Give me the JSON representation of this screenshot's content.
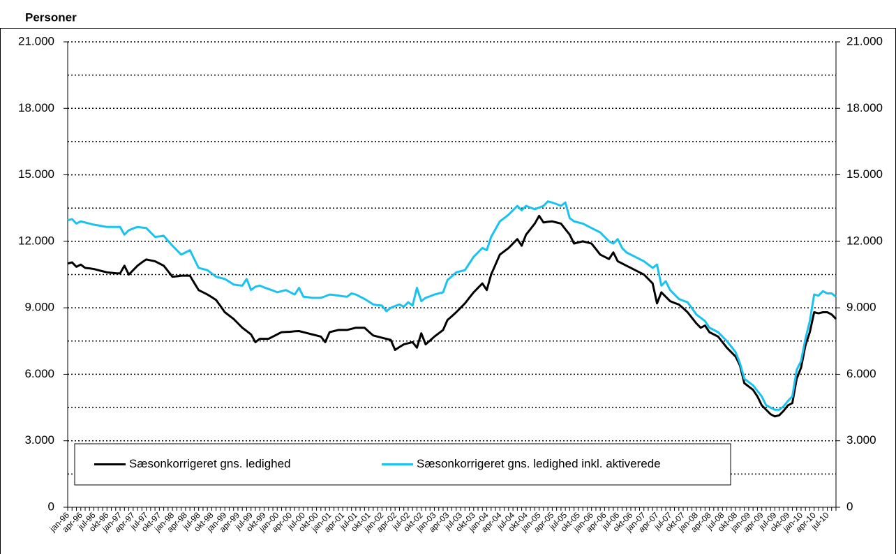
{
  "chart_data": {
    "type": "line",
    "y_axis_label": "Personer",
    "categories": [
      "jan-96",
      null,
      null,
      "apr-96",
      null,
      null,
      "jul-96",
      null,
      null,
      "okt-96",
      null,
      null,
      "jan-97",
      null,
      null,
      "apr-97",
      null,
      null,
      "jul-97",
      null,
      null,
      "okt-97",
      null,
      null,
      "jan-98",
      null,
      null,
      "apr-98",
      null,
      null,
      "jul-98",
      null,
      null,
      "okt-98",
      null,
      null,
      "jan-99",
      null,
      null,
      "apr-99",
      null,
      null,
      "jul-99",
      null,
      null,
      "okt-99",
      null,
      null,
      "jan-00",
      null,
      null,
      "apr-00",
      null,
      null,
      "jul-00",
      null,
      null,
      "okt-00",
      null,
      null,
      "jan-01",
      null,
      null,
      "apr-01",
      null,
      null,
      "jul-01",
      null,
      null,
      "okt-01",
      null,
      null,
      "jan-02",
      null,
      null,
      "apr-02",
      null,
      null,
      "jul-02",
      null,
      null,
      "okt-02",
      null,
      null,
      "jan-03",
      null,
      null,
      "apr-03",
      null,
      null,
      "jul-03",
      null,
      null,
      "okt-03",
      null,
      null,
      "jan-04",
      null,
      null,
      "apr-04",
      null,
      null,
      "jul-04",
      null,
      null,
      "okt-04",
      null,
      null,
      "jan-05",
      null,
      null,
      "apr-05",
      null,
      null,
      "jul-05",
      null,
      null,
      "okt-05",
      null,
      null,
      "jan-06",
      null,
      null,
      "apr-06",
      null,
      null,
      "jul-06",
      null,
      null,
      "okt-06",
      null,
      null,
      "jan-07",
      null,
      null,
      "apr-07",
      null,
      null,
      "jul-07",
      null,
      null,
      "okt-07",
      null,
      null,
      "jan-08",
      null,
      null,
      "apr-08",
      null,
      null,
      "jul-08",
      null,
      null,
      "okt-08",
      null,
      null,
      "jan-09",
      null,
      null,
      "apr-09",
      null,
      null,
      "jul-09",
      null,
      null,
      "okt-09",
      null,
      null,
      "jan-10",
      null,
      null,
      "apr-10",
      null,
      null,
      "jul-10",
      null,
      null
    ],
    "series": [
      {
        "name": "Sæsonkorrigeret gns. ledighed",
        "color": "#000000",
        "values": [
          11000,
          11050,
          10850,
          10950,
          10800,
          10780,
          10750,
          10700,
          10650,
          10600,
          10580,
          10560,
          10550,
          10900,
          10500,
          10700,
          10900,
          11050,
          11180,
          11140,
          11100,
          11000,
          10900,
          10650,
          10400,
          10420,
          10450,
          10450,
          10450,
          10120,
          9800,
          9700,
          9600,
          9480,
          9350,
          9080,
          8800,
          8650,
          8500,
          8300,
          8100,
          7950,
          7800,
          7450,
          7600,
          7600,
          7600,
          7700,
          7800,
          7900,
          7910,
          7920,
          7940,
          7950,
          7900,
          7850,
          7800,
          7750,
          7700,
          7450,
          7900,
          7950,
          8000,
          8000,
          8000,
          8050,
          8100,
          8100,
          8100,
          7920,
          7750,
          7700,
          7650,
          7600,
          7550,
          7100,
          7230,
          7350,
          7400,
          7450,
          7200,
          7850,
          7350,
          7520,
          7700,
          7850,
          8000,
          8450,
          8620,
          8800,
          9000,
          9200,
          9450,
          9700,
          9900,
          10100,
          9800,
          10500,
          10950,
          11400,
          11550,
          11700,
          11900,
          12100,
          11800,
          12300,
          12550,
          12800,
          13150,
          12850,
          12880,
          12900,
          12850,
          12800,
          12550,
          12300,
          11900,
          11950,
          12000,
          11950,
          11900,
          11650,
          11400,
          11300,
          11200,
          11500,
          11100,
          11000,
          10900,
          10800,
          10700,
          10600,
          10500,
          10300,
          10100,
          9200,
          9700,
          9500,
          9300,
          9220,
          9150,
          8980,
          8800,
          8550,
          8300,
          8100,
          8200,
          7900,
          7800,
          7700,
          7450,
          7200,
          7000,
          6800,
          6400,
          5600,
          5450,
          5300,
          5000,
          4600,
          4400,
          4200,
          4100,
          4150,
          4350,
          4600,
          4700,
          5800,
          6300,
          7300,
          7900,
          8800,
          8750,
          8800,
          8800,
          8700,
          8500
        ]
      },
      {
        "name": "Sæsonkorrigeret gns. ledighed inkl. aktiverede",
        "color": "#19c3f0",
        "values": [
          12950,
          13000,
          12800,
          12900,
          12850,
          12800,
          12750,
          12720,
          12680,
          12650,
          12650,
          12650,
          12650,
          12300,
          12500,
          12580,
          12650,
          12620,
          12600,
          12400,
          12200,
          12220,
          12250,
          12020,
          11800,
          11600,
          11400,
          11500,
          11600,
          11200,
          10800,
          10750,
          10700,
          10550,
          10400,
          10350,
          10300,
          10180,
          10050,
          10020,
          10000,
          10300,
          9800,
          9950,
          10000,
          9920,
          9850,
          9780,
          9700,
          9750,
          9800,
          9700,
          9600,
          9900,
          9500,
          9480,
          9450,
          9450,
          9450,
          9520,
          9600,
          9580,
          9550,
          9520,
          9500,
          9650,
          9600,
          9500,
          9400,
          9280,
          9150,
          9120,
          9100,
          8850,
          9000,
          9080,
          9150,
          9050,
          9250,
          9100,
          9900,
          9300,
          9450,
          9520,
          9600,
          9650,
          9700,
          10250,
          10420,
          10600,
          10650,
          10700,
          11000,
          11300,
          11500,
          11700,
          11600,
          12200,
          12550,
          12900,
          13050,
          13200,
          13400,
          13600,
          13400,
          13600,
          13520,
          13450,
          13520,
          13600,
          13800,
          13750,
          13680,
          13600,
          13750,
          13050,
          12900,
          12850,
          12800,
          12700,
          12600,
          12500,
          12400,
          12200,
          12000,
          11900,
          12100,
          11700,
          11500,
          11400,
          11300,
          11200,
          11100,
          10950,
          10800,
          10950,
          10000,
          10200,
          9800,
          9600,
          9400,
          9320,
          9250,
          8980,
          8700,
          8550,
          8400,
          8100,
          8000,
          7900,
          7700,
          7500,
          7250,
          7000,
          6500,
          5800,
          5650,
          5500,
          5250,
          5000,
          4600,
          4500,
          4400,
          4400,
          4550,
          4800,
          5000,
          6200,
          6600,
          7600,
          8400,
          9600,
          9550,
          9750,
          9650,
          9650,
          9500
        ]
      }
    ],
    "ylim": [
      0,
      21000
    ],
    "yticks": [
      0,
      {
        "value": 3000,
        "label": "3.000"
      },
      {
        "value": 6000,
        "label": "6.000"
      },
      {
        "value": 9000,
        "label": "9.000"
      },
      {
        "value": 12000,
        "label": "12.000"
      },
      {
        "value": 15000,
        "label": "15.000"
      },
      {
        "value": 18000,
        "label": "18.000"
      },
      {
        "value": 21000,
        "label": "21.000"
      }
    ],
    "minor_yticks": [
      1500,
      4500,
      7500,
      10500,
      13500,
      16500,
      19500
    ],
    "grid": true,
    "right_axis_labels": true,
    "legend": "bottom"
  }
}
